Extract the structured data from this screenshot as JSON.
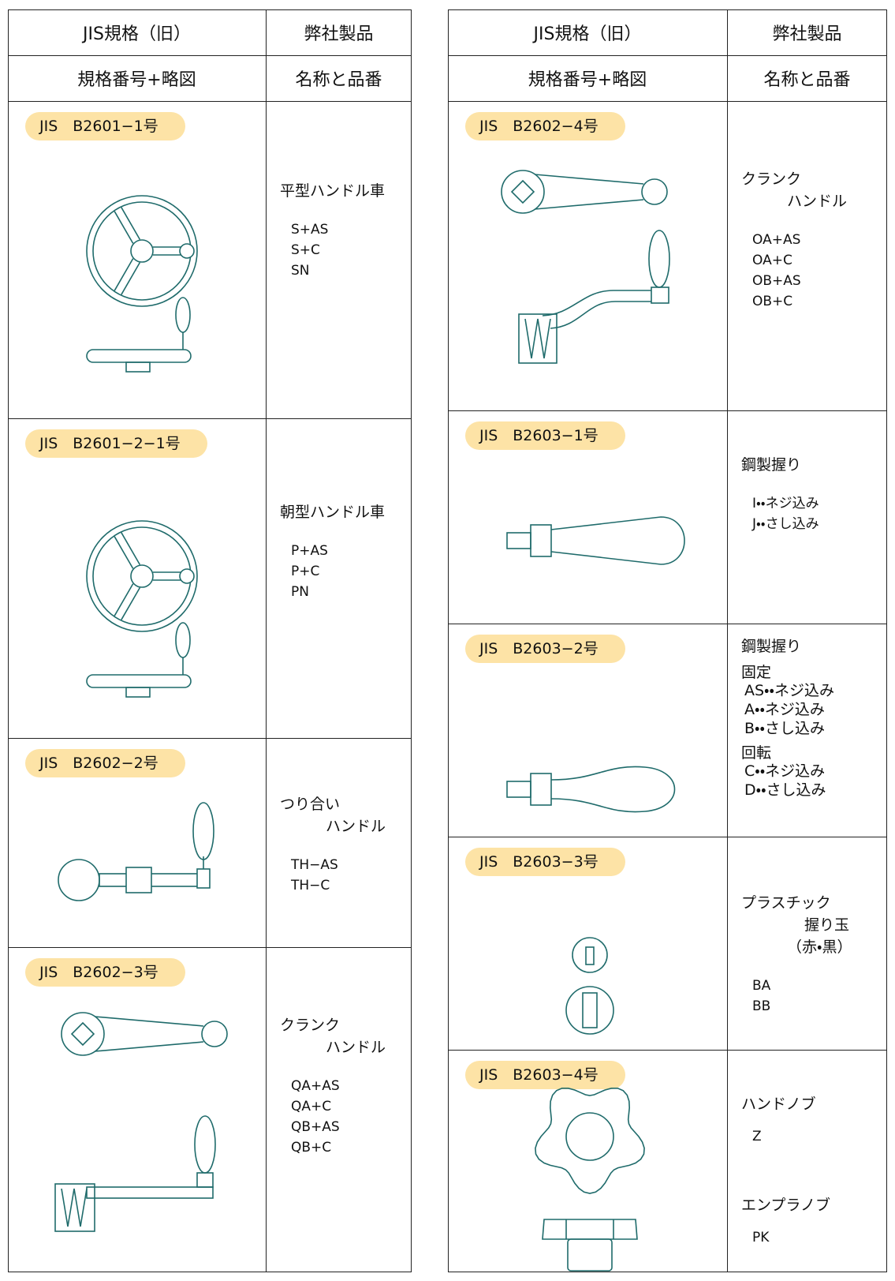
{
  "left_table": {
    "header": [
      [
        "JIS規格（旧）",
        "弊社製品"
      ],
      [
        "規格番号+略図",
        "名称と品番"
      ]
    ],
    "rows": [
      {
        "label": "JIS　B2601−1号",
        "name": [
          "平型ハンドル車"
        ],
        "codes": [
          "S+AS",
          "S+C",
          "SN"
        ]
      },
      {
        "label": "JIS　B2601−2−1号",
        "name": [
          "朝型ハンドル車"
        ],
        "codes": [
          "P+AS",
          "P+C",
          "PN"
        ]
      },
      {
        "label": "JIS　B2602−2号",
        "name": [
          "つり合い",
          "ハンドル"
        ],
        "codes": [
          "TH−AS",
          "TH−C"
        ]
      },
      {
        "label": "JIS　B2602−3号",
        "name": [
          "クランク",
          "ハンドル"
        ],
        "codes": [
          "QA+AS",
          "QA+C",
          "QB+AS",
          "QB+C"
        ]
      }
    ]
  },
  "right_table": {
    "header": [
      [
        "JIS規格（旧）",
        "弊社製品"
      ],
      [
        "規格番号+略図",
        "名称と品番"
      ]
    ],
    "rows": [
      {
        "label": "JIS　B2602−4号",
        "name": [
          "クランク",
          "ハンドル"
        ],
        "codes": [
          "OA+AS",
          "OA+C",
          "OB+AS",
          "OB+C"
        ]
      },
      {
        "label": "JIS　B2603−1号",
        "name": [
          "鋼製握り"
        ],
        "codes": [
          "I・・ネジ込み",
          "J・・さし込み"
        ]
      },
      {
        "label": "JIS　B2603−2号",
        "name": [
          "鋼製握り"
        ],
        "groups": [
          {
            "title": "固定",
            "codes": [
              "AS・・ネジ込み",
              "A・・ネジ込み",
              "B・・さし込み"
            ]
          },
          {
            "title": "回転",
            "codes": [
              "C・・ネジ込み",
              "D・・さし込み"
            ]
          }
        ]
      },
      {
        "label": "JIS　B2603−3号",
        "name": [
          "プラスチック",
          "握り玉",
          "（赤・黒）"
        ],
        "codes": [
          "BA",
          "BB"
        ]
      },
      {
        "label": "JIS　B2603−4号",
        "items": [
          {
            "name": "ハンドノブ",
            "code": "Z"
          },
          {
            "name": "エンプラノブ",
            "code": "PK"
          }
        ]
      }
    ]
  }
}
